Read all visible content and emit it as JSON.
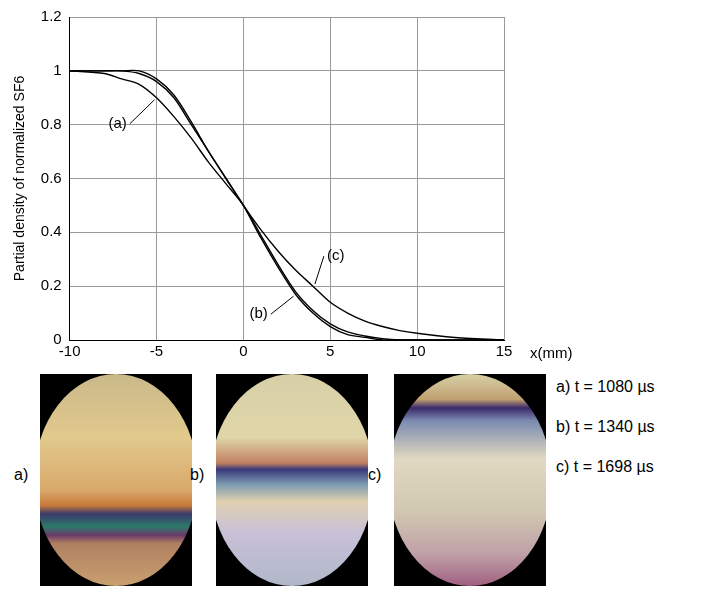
{
  "chart_data": {
    "type": "line",
    "y_label": "Partial density of normalized SF6",
    "x_label": "x(mm)",
    "x": [
      -10,
      -8,
      -7,
      -6,
      -5,
      -4,
      -3,
      -2,
      -1,
      0,
      1,
      2,
      3,
      4,
      5,
      6,
      7,
      8,
      9,
      10,
      12,
      15
    ],
    "series": [
      {
        "name": "(a)",
        "color": "#000000",
        "marker": "none",
        "line_style": "solid",
        "values": [
          1.0,
          0.99,
          0.97,
          0.95,
          0.9,
          0.83,
          0.75,
          0.66,
          0.58,
          0.5,
          0.39,
          0.28,
          0.18,
          0.11,
          0.06,
          0.03,
          0.015,
          0.005,
          0.0,
          0.0,
          0.0,
          0.0
        ]
      },
      {
        "name": "(b)",
        "color": "#000000",
        "marker": "none",
        "line_style": "solid",
        "values": [
          1.0,
          1.0,
          1.0,
          0.99,
          0.96,
          0.9,
          0.8,
          0.7,
          0.6,
          0.5,
          0.38,
          0.27,
          0.17,
          0.1,
          0.05,
          0.02,
          0.01,
          0.0,
          0.0,
          0.0,
          0.0,
          0.0
        ]
      },
      {
        "name": "(c)",
        "color": "#000000",
        "marker": "none",
        "line_style": "solid",
        "values": [
          1.0,
          1.0,
          1.0,
          1.0,
          0.97,
          0.91,
          0.81,
          0.7,
          0.6,
          0.5,
          0.41,
          0.33,
          0.26,
          0.2,
          0.14,
          0.1,
          0.07,
          0.05,
          0.035,
          0.025,
          0.01,
          0.0
        ]
      }
    ],
    "xlim": [
      -10,
      15
    ],
    "xticks": [
      -10,
      -5,
      0,
      5,
      10,
      15
    ],
    "ylim": [
      0,
      1.2
    ],
    "yticks": [
      0,
      0.2,
      0.4,
      0.6,
      0.8,
      1,
      1.2
    ],
    "grid": true
  },
  "photos": {
    "panels": [
      "a)",
      "b)",
      "c)"
    ],
    "captions": [
      "a) t = 1080 µs",
      "b) t = 1340 µs",
      "c) t = 1698 µs"
    ]
  }
}
